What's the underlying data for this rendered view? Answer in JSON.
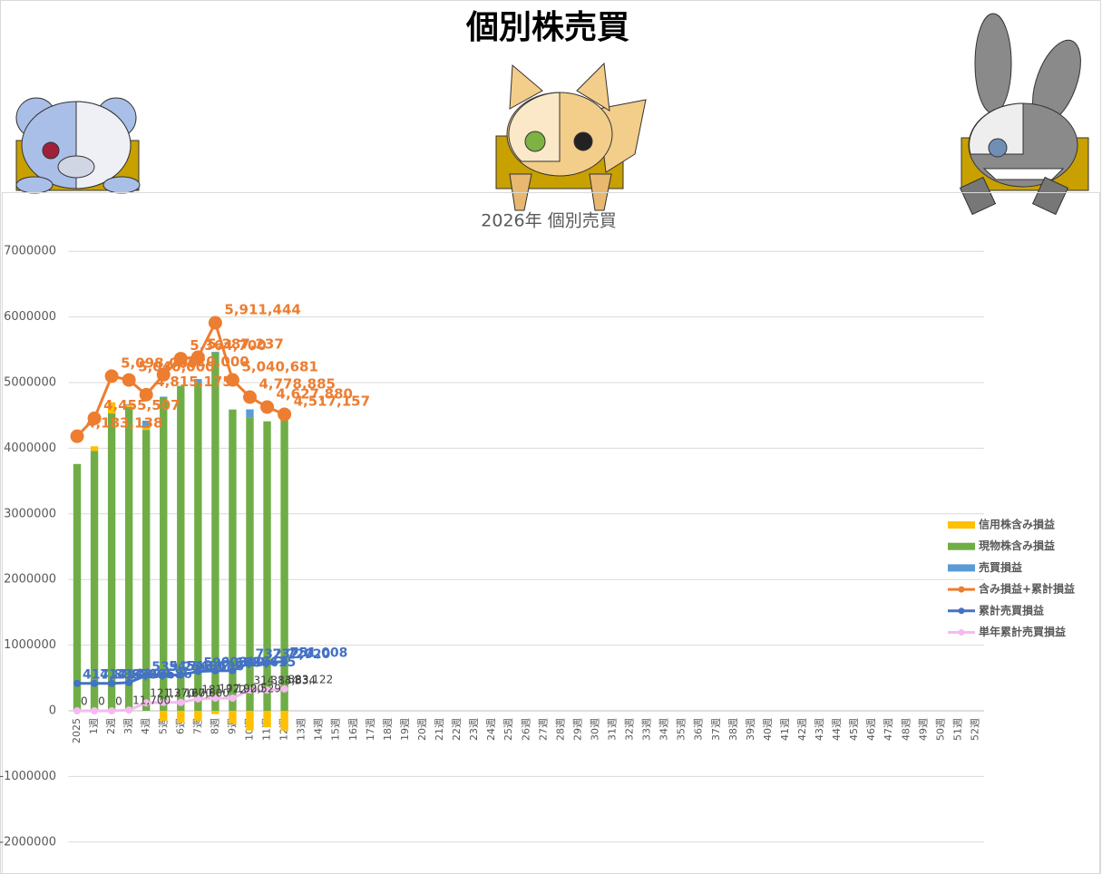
{
  "page_title": "個別株売買",
  "chart_data": {
    "type": "bar",
    "title": "2026年 個別売買",
    "categories": [
      "2025",
      "1週",
      "2週",
      "3週",
      "4週",
      "5週",
      "6週",
      "7週",
      "8週",
      "9週",
      "10週",
      "11週",
      "12週",
      "13週",
      "14週",
      "15週",
      "16週",
      "17週",
      "18週",
      "19週",
      "20週",
      "21週",
      "22週",
      "23週",
      "24週",
      "25週",
      "26週",
      "27週",
      "28週",
      "29週",
      "30週",
      "31週",
      "32週",
      "33週",
      "34週",
      "35週",
      "36週",
      "37週",
      "38週",
      "39週",
      "40週",
      "41週",
      "42週",
      "43週",
      "44週",
      "45週",
      "46週",
      "47週",
      "48週",
      "49週",
      "50週",
      "51週",
      "52週"
    ],
    "ylim": [
      -2000000,
      7000000
    ],
    "yticks": [
      -2000000,
      -1000000,
      0,
      1000000,
      2000000,
      3000000,
      4000000,
      5000000,
      6000000,
      7000000
    ],
    "grid": true,
    "legend": "right",
    "series": [
      {
        "name": "信用株含み損益",
        "type": "bar",
        "color": "#ffc000",
        "values": [
          0,
          70000,
          170000,
          30000,
          30000,
          -150000,
          -180000,
          -150000,
          -50000,
          -200000,
          -300000,
          -250000,
          -300000,
          null,
          null,
          null,
          null,
          null,
          null,
          null,
          null,
          null,
          null,
          null,
          null,
          null,
          null,
          null,
          null,
          null,
          null,
          null,
          null,
          null,
          null,
          null,
          null,
          null,
          null,
          null,
          null,
          null,
          null,
          null,
          null,
          null,
          null,
          null,
          null,
          null,
          null,
          null,
          null
        ]
      },
      {
        "name": "現物株含み損益",
        "type": "bar",
        "color": "#70ad47",
        "values": [
          3760000,
          3960000,
          4530000,
          4630000,
          4280000,
          4780000,
          4950000,
          5000000,
          5460000,
          4590000,
          4470000,
          4410000,
          4540000,
          null,
          null,
          null,
          null,
          null,
          null,
          null,
          null,
          null,
          null,
          null,
          null,
          null,
          null,
          null,
          null,
          null,
          null,
          null,
          null,
          null,
          null,
          null,
          null,
          null,
          null,
          null,
          null,
          null,
          null,
          null,
          null,
          null,
          null,
          null,
          null,
          null,
          null,
          null,
          null
        ]
      },
      {
        "name": "売買損益",
        "type": "bar",
        "color": "#5b9bd5",
        "values": [
          0,
          0,
          0,
          11700,
          109670,
          6230,
          0,
          54172,
          10228,
          529,
          122305,
          0,
          18288,
          null,
          null,
          null,
          null,
          null,
          null,
          null,
          null,
          null,
          null,
          null,
          null,
          null,
          null,
          null,
          null,
          null,
          null,
          null,
          null,
          null,
          null,
          null,
          null,
          null,
          null,
          null,
          null,
          null,
          null,
          null,
          null,
          null,
          null,
          null,
          null,
          null,
          null,
          null,
          null
        ]
      },
      {
        "name": "含み損益+累計損益",
        "type": "line",
        "color": "#ed7d31",
        "values": [
          4183138,
          4455507,
          5098000,
          5040000,
          4815175,
          5120000,
          5364700,
          5387237,
          5911444,
          5040681,
          4778885,
          4627880,
          4517157,
          null,
          null,
          null,
          null,
          null,
          null,
          null,
          null,
          null,
          null,
          null,
          null,
          null,
          null,
          null,
          null,
          null,
          null,
          null,
          null,
          null,
          null,
          null,
          null,
          null,
          null,
          null,
          null,
          null,
          null,
          null,
          null,
          null,
          null,
          null,
          null,
          null,
          null,
          null,
          null
        ],
        "value_labels": [
          "4,183,138",
          "4,455,507",
          "5,098,000",
          "5,040,000",
          "4,815,175",
          "5,120,000",
          "5,364,700",
          "5,387,237",
          "5,911,444",
          "5,040,681",
          "4,778,885",
          "4,627,880",
          "4,517,157",
          null,
          null,
          null,
          null,
          null,
          null,
          null,
          null,
          null,
          null,
          null,
          null,
          null,
          null,
          null,
          null,
          null,
          null,
          null,
          null,
          null,
          null,
          null,
          null,
          null,
          null,
          null,
          null,
          null,
          null,
          null,
          null,
          null,
          null,
          null,
          null,
          null,
          null,
          null,
          null
        ]
      },
      {
        "name": "累計売買損益",
        "type": "line",
        "color": "#4472c4",
        "values": [
          417886,
          417886,
          417886,
          429586,
          539256,
          545486,
          545486,
          599658,
          609886,
          610415,
          732720,
          732720,
          751008,
          null,
          null,
          null,
          null,
          null,
          null,
          null,
          null,
          null,
          null,
          null,
          null,
          null,
          null,
          null,
          null,
          null,
          null,
          null,
          null,
          null,
          null,
          null,
          null,
          null,
          null,
          null,
          null,
          null,
          null,
          null,
          null,
          null,
          null,
          null,
          null,
          null,
          null,
          null,
          null
        ],
        "value_labels": [
          "417,886",
          "417,886",
          "417,886",
          "429,586",
          "539,256",
          "545,486",
          "545,486",
          "599,658",
          "609,886",
          "610,415",
          "732,720",
          "732,720",
          "751,008",
          null,
          null,
          null,
          null,
          null,
          null,
          null,
          null,
          null,
          null,
          null,
          null,
          null,
          null,
          null,
          null,
          null,
          null,
          null,
          null,
          null,
          null,
          null,
          null,
          null,
          null,
          null,
          null,
          null,
          null,
          null,
          null,
          null,
          null,
          null,
          null,
          null,
          null,
          null,
          null
        ]
      },
      {
        "name": "単年累計売買損益",
        "type": "line",
        "color": "#f7b9f2",
        "values": [
          0,
          0,
          0,
          11700,
          121370,
          127600,
          127600,
          181772,
          192000,
          192529,
          314834,
          314834,
          333122,
          null,
          null,
          null,
          null,
          null,
          null,
          null,
          null,
          null,
          null,
          null,
          null,
          null,
          null,
          null,
          null,
          null,
          null,
          null,
          null,
          null,
          null,
          null,
          null,
          null,
          null,
          null,
          null,
          null,
          null,
          null,
          null,
          null,
          null,
          null,
          null,
          null,
          null,
          null,
          null
        ],
        "value_labels": [
          "0",
          "0",
          "0",
          "11,700",
          "121,370",
          "127,600",
          "127,600",
          "181,772",
          "192,000",
          "192,529",
          "314,834",
          "314,834",
          "333,122",
          null,
          null,
          null,
          null,
          null,
          null,
          null,
          null,
          null,
          null,
          null,
          null,
          null,
          null,
          null,
          null,
          null,
          null,
          null,
          null,
          null,
          null,
          null,
          null,
          null,
          null,
          null,
          null,
          null,
          null,
          null,
          null,
          null,
          null,
          null,
          null,
          null,
          null,
          null,
          null
        ]
      }
    ]
  }
}
